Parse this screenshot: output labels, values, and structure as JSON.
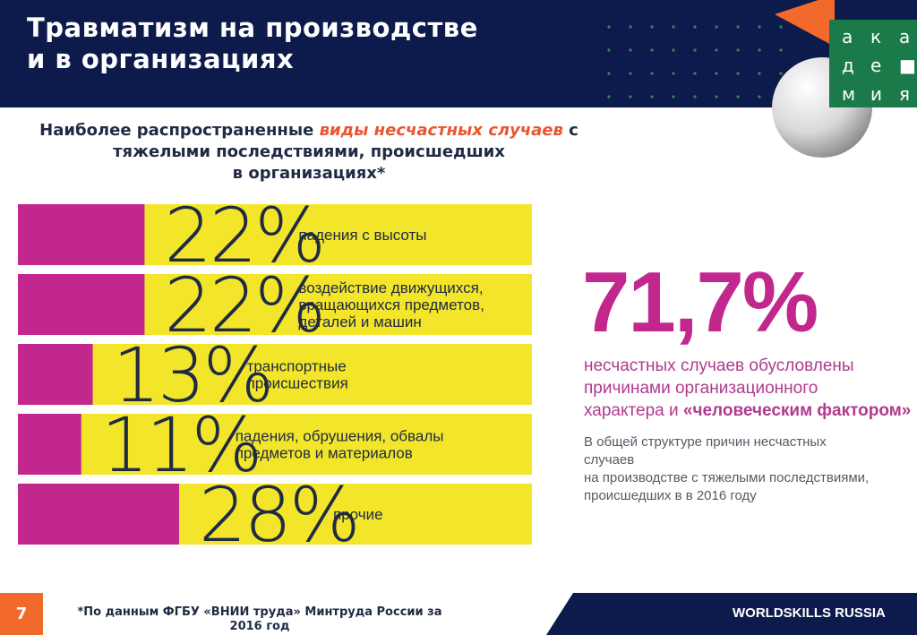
{
  "header": {
    "title_line1": "Травматизм на производстве",
    "title_line2": "и в организациях"
  },
  "logo": {
    "letters": [
      "а",
      "к",
      "а",
      "д",
      "е",
      "■",
      "м",
      "и",
      "я"
    ],
    "colors": {
      "orange": "#f26a2b",
      "green": "#1b7a4a"
    }
  },
  "subtitle": {
    "part1": "Наиболее распространенные ",
    "part2_highlight": "виды несчастных случаев",
    "part3": " с тяжелыми последствиями, происшедших",
    "part4": "в организациях*"
  },
  "chart_data": {
    "type": "bar",
    "categories": [
      "падения с высоты",
      "воздействие движущихся, вращающихся предметов, деталей и машин",
      "транспортные происшествия",
      "падения, обрушения, обвалы предметов и материалов",
      "прочие"
    ],
    "label_lines": [
      [
        "падения с высоты"
      ],
      [
        "воздействие движущихся,",
        "вращающихся предметов,",
        "деталей и машин"
      ],
      [
        "транспортные",
        "происшествия"
      ],
      [
        "падения, обрушения, обвалы",
        "предметов и материалов"
      ],
      [
        "прочие"
      ]
    ],
    "values": [
      22,
      22,
      13,
      11,
      28
    ],
    "value_labels": [
      "22%",
      "22%",
      "13%",
      "11%",
      "28%"
    ],
    "unit": "%",
    "colors": {
      "fill": "#c2278e",
      "track": "#f2e52a"
    }
  },
  "stat": {
    "value": "71,7%",
    "desc_line1": "несчастных случаев обусловлены",
    "desc_line2": "причинами организационного",
    "desc_line3": "характера и ",
    "desc_strong": "«человеческим фактором»",
    "note_line1": "В общей структуре причин несчастных случаев",
    "note_line2": "на производстве с тяжелыми последствиями,",
    "note_line3": "происшедших в в 2016 году"
  },
  "footer": {
    "page_number": "7",
    "source_line1": "*По данным ФГБУ «ВНИИ труда» Минтруда России за",
    "source_line2": "2016 год",
    "brand": "WORLDSKILLS RUSSIA"
  }
}
